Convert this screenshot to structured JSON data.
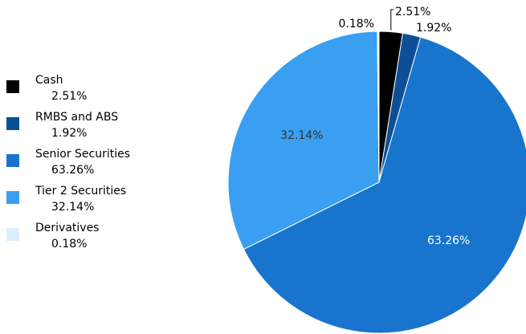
{
  "chart_data": {
    "type": "pie",
    "categories": [
      "Cash",
      "RMBS and ABS",
      "Senior Securities",
      "Tier 2 Securities",
      "Derivatives"
    ],
    "values": [
      2.51,
      1.92,
      63.26,
      32.14,
      0.18
    ],
    "labels": [
      "2.51%",
      "1.92%",
      "63.26%",
      "32.14%",
      "0.18%"
    ],
    "colors": [
      "#000000",
      "#0d4f96",
      "#1874cd",
      "#3a9ff0",
      "#ddeeff"
    ],
    "legend_position": "left",
    "title": ""
  },
  "legend": {
    "items": [
      {
        "name": "Cash",
        "pct": "2.51%"
      },
      {
        "name": "RMBS and ABS",
        "pct": "1.92%"
      },
      {
        "name": "Senior Securities",
        "pct": "63.26%"
      },
      {
        "name": "Tier 2 Securities",
        "pct": "32.14%"
      },
      {
        "name": "Derivatives",
        "pct": "0.18%"
      }
    ]
  }
}
